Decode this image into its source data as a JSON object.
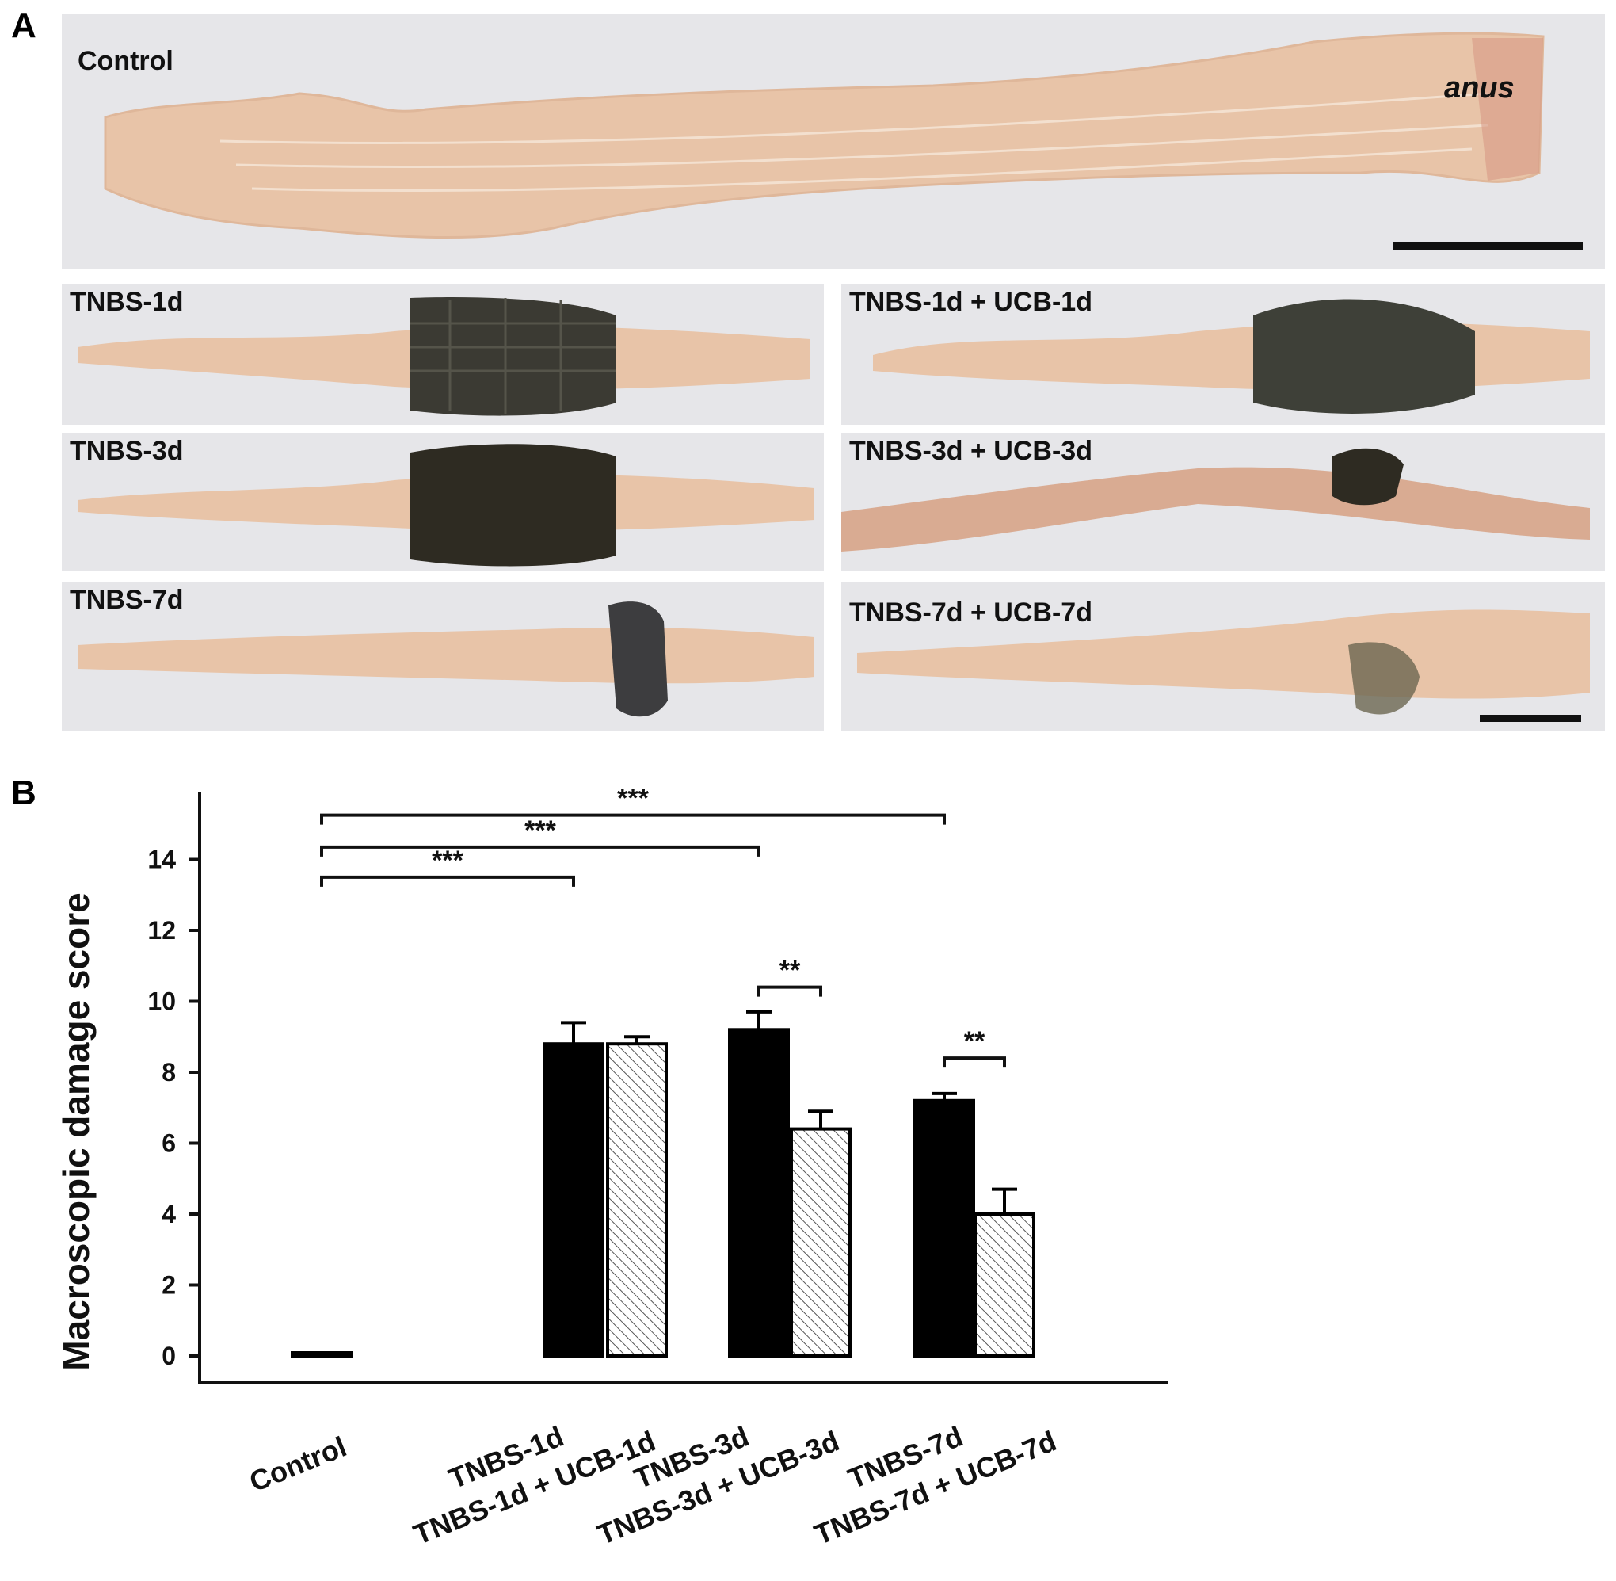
{
  "panel_a": {
    "letter": "A",
    "control_label": "Control",
    "anus_label": "anus",
    "photos": [
      {
        "label": "TNBS-1d"
      },
      {
        "label": "TNBS-1d + UCB-1d"
      },
      {
        "label": "TNBS-3d"
      },
      {
        "label": "TNBS-3d + UCB-3d"
      },
      {
        "label": "TNBS-7d"
      },
      {
        "label": "TNBS-7d + UCB-7d"
      }
    ],
    "colors": {
      "tissue": "#e8c4a8",
      "tissue_dark": "#d79a86",
      "lesion": "#3b3a33",
      "background": "#e6e6e9"
    }
  },
  "panel_b": {
    "letter": "B"
  },
  "chart_data": {
    "type": "bar",
    "ylabel": "Macroscopic damage score",
    "ylim": [
      -0.8,
      15.5
    ],
    "yticks": [
      0,
      2,
      4,
      6,
      8,
      10,
      12,
      14
    ],
    "categories": [
      "Control",
      "TNBS-1d",
      "TNBS-1d + UCB-1d",
      "TNBS-3d",
      "TNBS-3d + UCB-3d",
      "TNBS-7d",
      "TNBS-7d + UCB-7d"
    ],
    "values": [
      0,
      8.8,
      8.8,
      9.2,
      6.4,
      7.2,
      4.0
    ],
    "errors": [
      0,
      0.6,
      0.2,
      0.5,
      0.5,
      0.2,
      0.7
    ],
    "fills": [
      "white",
      "black",
      "hatched",
      "black",
      "hatched",
      "black",
      "hatched"
    ],
    "significance": [
      {
        "from": 0,
        "to": 1,
        "label": "***"
      },
      {
        "from": 0,
        "to": 3,
        "label": "***"
      },
      {
        "from": 0,
        "to": 5,
        "label": "***"
      },
      {
        "from": 3,
        "to": 4,
        "label": "**"
      },
      {
        "from": 5,
        "to": 6,
        "label": "**"
      }
    ]
  }
}
